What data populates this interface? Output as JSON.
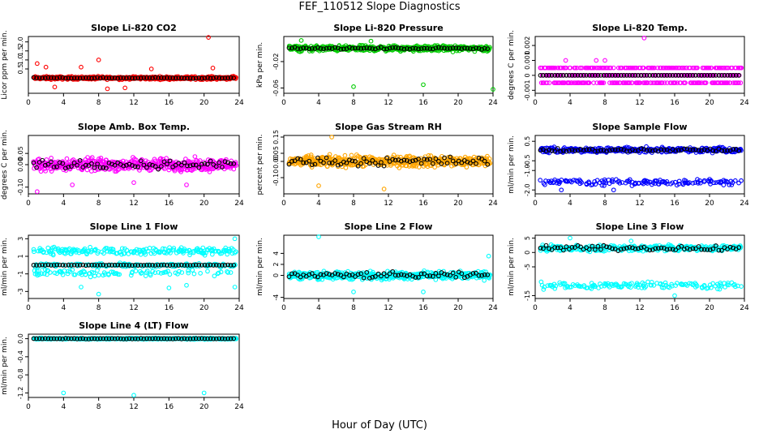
{
  "figure": {
    "title": "FEF_110512  Slope Diagnostics",
    "xlabel": "Hour of Day (UTC)"
  },
  "chart_data": [
    {
      "type": "scatter",
      "title": "Slope Li-820 CO2",
      "ylabel": "Licor ppm per min.",
      "xlim": [
        0,
        24
      ],
      "xticks": [
        0,
        4,
        8,
        12,
        16,
        20,
        24
      ],
      "ylim": [
        -0.85,
        2.3
      ],
      "yticks": [
        -1.0,
        0.5,
        1.0,
        1.5,
        2.0
      ],
      "ytick_labels": [
        "-1.0",
        "0.5",
        "1.0",
        "1.5",
        "2.0"
      ],
      "color": "#ff0000",
      "base": 0.0,
      "spread": 0.12,
      "black_spread": 0.04,
      "outliers": [
        [
          2,
          0.6
        ],
        [
          1,
          0.8
        ],
        [
          8,
          1.0
        ],
        [
          20.5,
          2.25
        ],
        [
          6,
          0.6
        ],
        [
          14,
          0.5
        ],
        [
          21,
          0.55
        ],
        [
          3,
          -0.5
        ],
        [
          9,
          -0.6
        ],
        [
          11,
          -0.55
        ]
      ]
    },
    {
      "type": "scatter",
      "title": "Slope Li-820 Pressure",
      "ylabel": "kPa per min.",
      "xlim": [
        0,
        24
      ],
      "xticks": [
        0,
        4,
        8,
        12,
        16,
        20,
        24
      ],
      "ylim": [
        -0.068,
        0.018
      ],
      "yticks": [
        -0.06,
        -0.02
      ],
      "ytick_labels": [
        "-0.06",
        "-0.02"
      ],
      "color": "#00cc00",
      "base": 0.0,
      "spread": 0.006,
      "black_spread": 0.002,
      "outliers": [
        [
          8,
          -0.058
        ],
        [
          16,
          -0.055
        ],
        [
          24,
          -0.062
        ],
        [
          2,
          0.012
        ],
        [
          10,
          0.011
        ]
      ]
    },
    {
      "type": "scatter",
      "title": "Slope Li-820 Temp.",
      "ylabel": "degrees C per min.",
      "xlim": [
        0,
        24
      ],
      "xticks": [
        0,
        4,
        8,
        12,
        16,
        20,
        24
      ],
      "ylim": [
        -0.0012,
        0.0026
      ],
      "yticks": [
        -0.001,
        0.0,
        0.001,
        0.002
      ],
      "ytick_labels": [
        "-0.001",
        "0",
        "0.001",
        "0.002"
      ],
      "color": "#ff00ff",
      "base": 0.0,
      "discrete": 0.0005,
      "spread": 0.0005,
      "black_spread": 0.0,
      "outliers": [
        [
          12.5,
          0.0025
        ],
        [
          7,
          0.001
        ],
        [
          8,
          0.001
        ],
        [
          3.5,
          0.001
        ],
        [
          7.5,
          0.0005
        ]
      ]
    },
    {
      "type": "scatter",
      "title": "Slope Amb. Box Temp.",
      "ylabel": "degrees C per min.",
      "xlim": [
        0,
        24
      ],
      "xticks": [
        0,
        4,
        8,
        12,
        16,
        20,
        24
      ],
      "ylim": [
        -0.13,
        0.13
      ],
      "yticks": [
        -0.1,
        0.0,
        0.05
      ],
      "ytick_labels": [
        "-0.10",
        "0.00",
        "0.05"
      ],
      "color": "#ff00ff",
      "base": 0.0,
      "spread": 0.04,
      "black_spread": 0.025,
      "outliers": [
        [
          1,
          -0.12
        ],
        [
          5,
          -0.09
        ],
        [
          12,
          -0.08
        ],
        [
          18,
          -0.09
        ]
      ]
    },
    {
      "type": "scatter",
      "title": "Slope Gas Stream RH",
      "ylabel": "percent per min.",
      "xlim": [
        0,
        24
      ],
      "xticks": [
        0,
        4,
        8,
        12,
        16,
        20,
        24
      ],
      "ylim": [
        -0.2,
        0.16
      ],
      "yticks": [
        -0.1,
        0.0,
        0.05,
        0.15
      ],
      "ytick_labels": [
        "-0.10",
        "0.00",
        "0.05",
        "0.15"
      ],
      "color": "#ffa500",
      "base": 0.0,
      "spread": 0.05,
      "black_spread": 0.04,
      "outliers": [
        [
          5.5,
          0.15
        ],
        [
          11.5,
          -0.17
        ],
        [
          4,
          -0.15
        ]
      ]
    },
    {
      "type": "scatter",
      "title": "Slope Sample Flow",
      "ylabel": "ml/min per min.",
      "xlim": [
        0,
        24
      ],
      "xticks": [
        0,
        4,
        8,
        12,
        16,
        20,
        24
      ],
      "ylim": [
        -2.2,
        0.8
      ],
      "yticks": [
        -2.0,
        -1.0,
        -0.5,
        0.5
      ],
      "ytick_labels": [
        "-2.0",
        "-1.0",
        "-0.5",
        "0.5"
      ],
      "color": "#0000ff",
      "base": 0.05,
      "spread": 0.2,
      "black_spread": 0.1,
      "second_band": -1.6,
      "outliers": [
        [
          9,
          -2.0
        ],
        [
          3,
          -2.0
        ]
      ]
    },
    {
      "type": "scatter",
      "title": "Slope Line 1 Flow",
      "ylabel": "ml/min per min.",
      "xlim": [
        0,
        24
      ],
      "xticks": [
        0,
        4,
        8,
        12,
        16,
        20,
        24
      ],
      "ylim": [
        -3.8,
        3.4
      ],
      "yticks": [
        -3,
        -1,
        1,
        3
      ],
      "ytick_labels": [
        "-3",
        "-1",
        "1",
        "3"
      ],
      "color": "#00ffff",
      "base": 0.0,
      "spread": 0.3,
      "black_spread": 0.05,
      "band_up": 1.6,
      "band_down": -0.9,
      "outliers": [
        [
          8,
          -3.3
        ],
        [
          6,
          -2.5
        ],
        [
          23.5,
          -2.5
        ],
        [
          16,
          -2.6
        ],
        [
          18,
          -2.3
        ],
        [
          23.5,
          3.0
        ]
      ]
    },
    {
      "type": "scatter",
      "title": "Slope Line 2 Flow",
      "ylabel": "ml/min per min.",
      "xlim": [
        0,
        24
      ],
      "xticks": [
        0,
        4,
        8,
        12,
        16,
        20,
        24
      ],
      "ylim": [
        -4.2,
        7.3
      ],
      "yticks": [
        -4,
        0,
        2,
        4
      ],
      "ytick_labels": [
        "-4",
        "0",
        "2",
        "4"
      ],
      "color": "#00ffff",
      "base": 0.0,
      "spread": 1.0,
      "black_spread": 0.8,
      "outliers": [
        [
          4,
          7.0
        ],
        [
          23.5,
          3.5
        ],
        [
          16,
          -3.0
        ],
        [
          8,
          -3.0
        ]
      ]
    },
    {
      "type": "scatter",
      "title": "Slope Line 3 Flow",
      "ylabel": "ml/min per min.",
      "xlim": [
        0,
        24
      ],
      "xticks": [
        0,
        4,
        8,
        12,
        16,
        20,
        24
      ],
      "ylim": [
        -16,
        6
      ],
      "yticks": [
        -15,
        -5,
        0,
        5
      ],
      "ytick_labels": [
        "-15",
        "-5",
        "0",
        "5"
      ],
      "color": "#00ffff",
      "base": 1.5,
      "spread": 1.5,
      "black_spread": 1.2,
      "second_band": -11.5,
      "outliers": [
        [
          16,
          -15
        ],
        [
          4,
          5
        ],
        [
          11,
          4
        ]
      ]
    },
    {
      "type": "scatter",
      "title": "Slope Line 4 (LT) Flow",
      "ylabel": "ml/min per min.",
      "xlim": [
        0,
        24
      ],
      "xticks": [
        0,
        4,
        8,
        12,
        16,
        20,
        24
      ],
      "ylim": [
        -1.3,
        0.1
      ],
      "yticks": [
        -1.2,
        -0.8,
        -0.4,
        0.0
      ],
      "ytick_labels": [
        "-1.2",
        "-0.8",
        "-0.4",
        "0.0"
      ],
      "color": "#00ffff",
      "base": 0.0,
      "spread": 0.02,
      "black_spread": 0.01,
      "outliers": [
        [
          4,
          -1.2
        ],
        [
          12,
          -1.25
        ],
        [
          20,
          -1.2
        ]
      ]
    }
  ]
}
